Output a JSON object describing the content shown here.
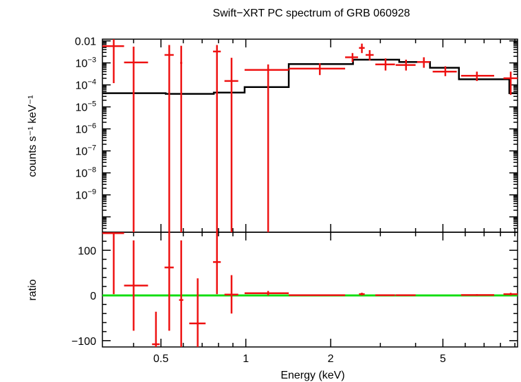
{
  "chart_data": {
    "type": "line",
    "title": "Swift−XRT PC spectrum of GRB 060928",
    "xlabel": "Energy (keV)",
    "xscale": "log",
    "xlim": [
      0.31,
      9.2
    ],
    "x_ticks": [
      {
        "value": 0.5,
        "label": "0.5"
      },
      {
        "value": 1,
        "label": "1"
      },
      {
        "value": 2,
        "label": "2"
      },
      {
        "value": 5,
        "label": "5"
      }
    ],
    "panels": [
      {
        "name": "spectrum",
        "ylabel": "counts s⁻¹ keV⁻¹",
        "yscale": "log",
        "ylim": [
          2e-11,
          0.012
        ],
        "y_ticks": [
          {
            "value": 0.01,
            "label": "0.01"
          },
          {
            "value": 0.001,
            "label": "10⁻³"
          },
          {
            "value": 0.0001,
            "label": "10⁻⁴"
          },
          {
            "value": 1e-05,
            "label": "10⁻⁵"
          },
          {
            "value": 1e-06,
            "label": "10⁻⁶"
          },
          {
            "value": 1e-07,
            "label": "10⁻⁷"
          },
          {
            "value": 1e-08,
            "label": "10⁻⁸"
          },
          {
            "value": 1e-09,
            "label": "10⁻⁹"
          }
        ],
        "data": [
          {
            "x": 0.34,
            "xlo": 0.31,
            "xhi": 0.37,
            "y": 0.0058,
            "ylo": 0.00012,
            "yhi": 0.012
          },
          {
            "x": 0.4,
            "xlo": 0.37,
            "xhi": 0.45,
            "y": 0.00105,
            "ylo": 2e-11,
            "yhi": 0.0055
          },
          {
            "x": 0.535,
            "xlo": 0.515,
            "xhi": 0.555,
            "y": 0.0023,
            "ylo": 2e-11,
            "yhi": 0.0065
          },
          {
            "x": 0.59,
            "xlo": 0.585,
            "xhi": 0.595,
            "y": 0.001,
            "ylo": 2e-11,
            "yhi": 0.006
          },
          {
            "x": 0.79,
            "xlo": 0.765,
            "xhi": 0.815,
            "y": 0.0033,
            "ylo": 2e-11,
            "yhi": 0.0065
          },
          {
            "x": 0.89,
            "xlo": 0.84,
            "xhi": 0.94,
            "y": 0.00015,
            "ylo": 2e-11,
            "yhi": 0.0017
          },
          {
            "x": 1.2,
            "xlo": 0.99,
            "xhi": 1.42,
            "y": 0.00048,
            "ylo": 2e-11,
            "yhi": 0.00085
          },
          {
            "x": 1.83,
            "xlo": 1.42,
            "xhi": 2.25,
            "y": 0.00055,
            "ylo": 0.00028,
            "yhi": 0.00095
          },
          {
            "x": 2.39,
            "xlo": 2.25,
            "xhi": 2.5,
            "y": 0.0018,
            "ylo": 0.0011,
            "yhi": 0.0028
          },
          {
            "x": 2.58,
            "xlo": 2.52,
            "xhi": 2.64,
            "y": 0.0048,
            "ylo": 0.0028,
            "yhi": 0.0075
          },
          {
            "x": 2.75,
            "xlo": 2.66,
            "xhi": 2.84,
            "y": 0.0023,
            "ylo": 0.0013,
            "yhi": 0.0038
          },
          {
            "x": 3.13,
            "xlo": 2.88,
            "xhi": 3.38,
            "y": 0.00085,
            "ylo": 0.00045,
            "yhi": 0.0016
          },
          {
            "x": 3.7,
            "xlo": 3.4,
            "xhi": 4.0,
            "y": 0.0008,
            "ylo": 0.00045,
            "yhi": 0.0014
          },
          {
            "x": 4.28,
            "xlo": 4.05,
            "xhi": 4.5,
            "y": 0.0011,
            "ylo": 0.0006,
            "yhi": 0.0018
          },
          {
            "x": 5.1,
            "xlo": 4.6,
            "xhi": 5.6,
            "y": 0.0004,
            "ylo": 0.00025,
            "yhi": 0.0007
          },
          {
            "x": 6.6,
            "xlo": 5.8,
            "xhi": 7.6,
            "y": 0.00026,
            "ylo": 0.00015,
            "yhi": 0.0004
          },
          {
            "x": 8.7,
            "xlo": 8.2,
            "xhi": 9.2,
            "y": 0.0002,
            "ylo": 3.5e-05,
            "yhi": 0.0004
          }
        ],
        "model_steps": [
          {
            "x0": 0.31,
            "x1": 0.52,
            "y": 4.2e-05
          },
          {
            "x0": 0.52,
            "x1": 0.77,
            "y": 3.9e-05
          },
          {
            "x0": 0.77,
            "x1": 0.99,
            "y": 4.5e-05
          },
          {
            "x0": 0.99,
            "x1": 1.42,
            "y": 8e-05
          },
          {
            "x0": 1.42,
            "x1": 2.4,
            "y": 0.00088
          },
          {
            "x0": 2.4,
            "x1": 3.5,
            "y": 0.0014
          },
          {
            "x0": 3.5,
            "x1": 4.5,
            "y": 0.0011
          },
          {
            "x0": 4.5,
            "x1": 5.7,
            "y": 0.0006
          },
          {
            "x0": 5.7,
            "x1": 8.6,
            "y": 0.00018
          },
          {
            "x0": 8.6,
            "x1": 9.2,
            "y": 4.2e-05
          }
        ]
      },
      {
        "name": "ratio",
        "ylabel": "ratio",
        "yscale": "linear",
        "ylim": [
          -114,
          140
        ],
        "y_ticks": [
          {
            "value": 100,
            "label": "100"
          },
          {
            "value": 0,
            "label": "0"
          },
          {
            "value": -100,
            "label": "−100"
          }
        ],
        "reference_line": 0,
        "data": [
          {
            "x": 0.34,
            "xlo": 0.31,
            "xhi": 0.37,
            "y": 138,
            "ylo": 3,
            "yhi": 140
          },
          {
            "x": 0.4,
            "xlo": 0.37,
            "xhi": 0.45,
            "y": 22,
            "ylo": -78,
            "yhi": 122
          },
          {
            "x": 0.48,
            "xlo": 0.465,
            "xhi": 0.495,
            "y": -108,
            "ylo": -114,
            "yhi": -36
          },
          {
            "x": 0.535,
            "xlo": 0.515,
            "xhi": 0.555,
            "y": 62,
            "ylo": -78,
            "yhi": 140
          },
          {
            "x": 0.59,
            "xlo": 0.58,
            "xhi": 0.6,
            "y": -10,
            "ylo": -114,
            "yhi": 122
          },
          {
            "x": 0.675,
            "xlo": 0.63,
            "xhi": 0.72,
            "y": -62,
            "ylo": -114,
            "yhi": 38
          },
          {
            "x": 0.79,
            "xlo": 0.765,
            "xhi": 0.815,
            "y": 74,
            "ylo": 3,
            "yhi": 140
          },
          {
            "x": 0.89,
            "xlo": 0.84,
            "xhi": 0.94,
            "y": 2,
            "ylo": -40,
            "yhi": 45
          },
          {
            "x": 1.2,
            "xlo": 0.99,
            "xhi": 1.42,
            "y": 5,
            "ylo": 0,
            "yhi": 10
          },
          {
            "x": 1.83,
            "xlo": 1.42,
            "xhi": 2.25,
            "y": 0.6,
            "ylo": -1,
            "yhi": 2
          },
          {
            "x": 2.58,
            "xlo": 2.52,
            "xhi": 2.64,
            "y": 3,
            "ylo": 0,
            "yhi": 6
          },
          {
            "x": 3.13,
            "xlo": 2.88,
            "xhi": 3.38,
            "y": 0.6,
            "ylo": -1,
            "yhi": 2
          },
          {
            "x": 3.7,
            "xlo": 3.4,
            "xhi": 4.0,
            "y": 0.6,
            "ylo": -1,
            "yhi": 2
          },
          {
            "x": 6.6,
            "xlo": 5.8,
            "xhi": 7.6,
            "y": 1,
            "ylo": -1,
            "yhi": 3
          },
          {
            "x": 8.7,
            "xlo": 8.2,
            "xhi": 9.2,
            "y": 3,
            "ylo": 0,
            "yhi": 6
          }
        ]
      }
    ],
    "colors": {
      "data": "#ee1111",
      "model": "#000000",
      "reference": "#11dd11",
      "axes": "#000000"
    },
    "grid": false,
    "legend": "none"
  }
}
